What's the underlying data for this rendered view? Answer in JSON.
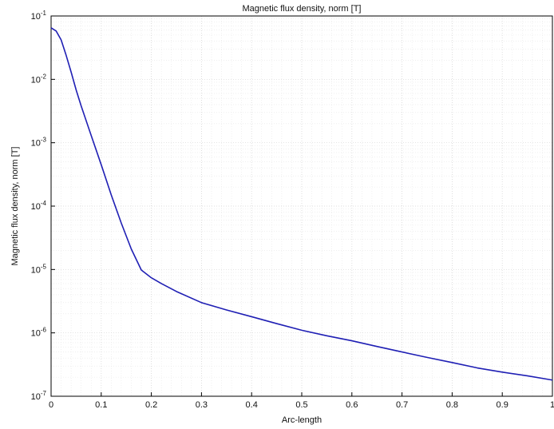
{
  "chart_data": {
    "type": "line",
    "title": "Magnetic flux density, norm [T]",
    "xlabel": "Arc-length",
    "ylabel": "Magnetic flux density, norm [T]",
    "xlim": [
      0,
      1
    ],
    "ylim": [
      1e-07,
      0.1
    ],
    "y_scale": "log",
    "grid": true,
    "x_ticks": [
      {
        "value": 0,
        "label": "0"
      },
      {
        "value": 0.1,
        "label": "0.1"
      },
      {
        "value": 0.2,
        "label": "0.2"
      },
      {
        "value": 0.3,
        "label": "0.3"
      },
      {
        "value": 0.4,
        "label": "0.4"
      },
      {
        "value": 0.5,
        "label": "0.5"
      },
      {
        "value": 0.6,
        "label": "0.6"
      },
      {
        "value": 0.7,
        "label": "0.7"
      },
      {
        "value": 0.8,
        "label": "0.8"
      },
      {
        "value": 0.9,
        "label": "0.9"
      },
      {
        "value": 1,
        "label": "1"
      }
    ],
    "y_ticks": [
      {
        "value": 1e-07,
        "base": "10",
        "exp": "-7"
      },
      {
        "value": 1e-06,
        "base": "10",
        "exp": "-6"
      },
      {
        "value": 1e-05,
        "base": "10",
        "exp": "-5"
      },
      {
        "value": 0.0001,
        "base": "10",
        "exp": "-4"
      },
      {
        "value": 0.001,
        "base": "10",
        "exp": "-3"
      },
      {
        "value": 0.01,
        "base": "10",
        "exp": "-2"
      },
      {
        "value": 0.1,
        "base": "10",
        "exp": "-1"
      }
    ],
    "series": [
      {
        "color": "#1f1fb4",
        "x": [
          0,
          0.01,
          0.02,
          0.03,
          0.04,
          0.05,
          0.06,
          0.08,
          0.1,
          0.12,
          0.14,
          0.16,
          0.18,
          0.19,
          0.2,
          0.22,
          0.25,
          0.3,
          0.35,
          0.4,
          0.45,
          0.5,
          0.55,
          0.6,
          0.65,
          0.7,
          0.75,
          0.8,
          0.85,
          0.9,
          0.95,
          1.0
        ],
        "y": [
          0.065,
          0.058,
          0.042,
          0.024,
          0.013,
          0.0068,
          0.0038,
          0.0013,
          0.00045,
          0.00015,
          5.4e-05,
          2.1e-05,
          9.8e-06,
          8.5e-06,
          7.4e-06,
          6e-06,
          4.5e-06,
          3e-06,
          2.3e-06,
          1.8e-06,
          1.4e-06,
          1.1e-06,
          9e-07,
          7.5e-07,
          6.1e-07,
          5e-07,
          4.1e-07,
          3.4e-07,
          2.8e-07,
          2.4e-07,
          2.1e-07,
          1.8e-07
        ]
      }
    ]
  }
}
